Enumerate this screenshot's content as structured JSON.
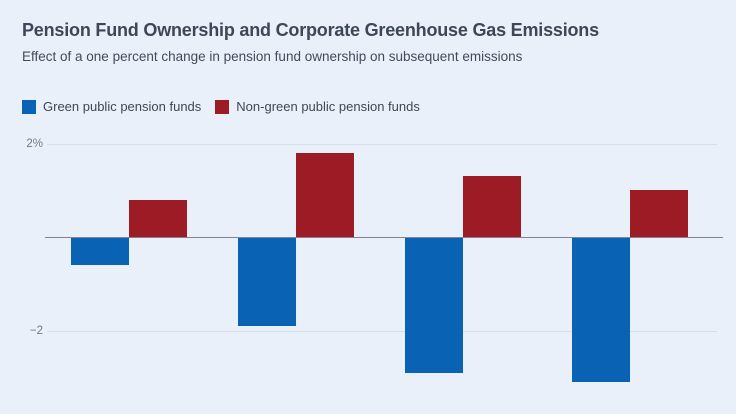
{
  "page": {
    "background_color": "#eaf0fa"
  },
  "header": {
    "title": "Pension Fund Ownership and Corporate Greenhouse Gas Emissions",
    "subtitle": "Effect of a one percent change in pension fund ownership on subsequent emissions"
  },
  "legend": {
    "items": [
      {
        "label": "Green public pension funds",
        "color": "#0a62b4"
      },
      {
        "label": "Non-green public pension funds",
        "color": "#9c1b24"
      }
    ]
  },
  "chart_data": {
    "type": "bar",
    "title": "Pension Fund Ownership and Corporate Greenhouse Gas Emissions",
    "subtitle": "Effect of a one percent change in pension fund ownership on subsequent emissions",
    "unit": "percent",
    "categories": [
      "",
      "",
      "",
      ""
    ],
    "series": [
      {
        "name": "Green public pension funds",
        "color": "#0a62b4",
        "values": [
          -0.6,
          -1.9,
          -2.9,
          -3.1
        ]
      },
      {
        "name": "Non-green public pension funds",
        "color": "#9c1b24",
        "values": [
          0.8,
          1.8,
          1.3,
          1.0
        ]
      }
    ],
    "y_axis": {
      "ticks": [
        {
          "value": 2,
          "label": "2%"
        },
        {
          "value": -2,
          "label": "−2"
        }
      ],
      "range": [
        -3.3,
        2.1
      ],
      "zero_line": true
    },
    "x_axis": {
      "labels_visible": false
    },
    "grid": true,
    "legend_position": "top-left",
    "colors": {
      "axis_line": "#7e8590",
      "gridline": "#d6dfec",
      "tick_text": "#717a88"
    }
  }
}
